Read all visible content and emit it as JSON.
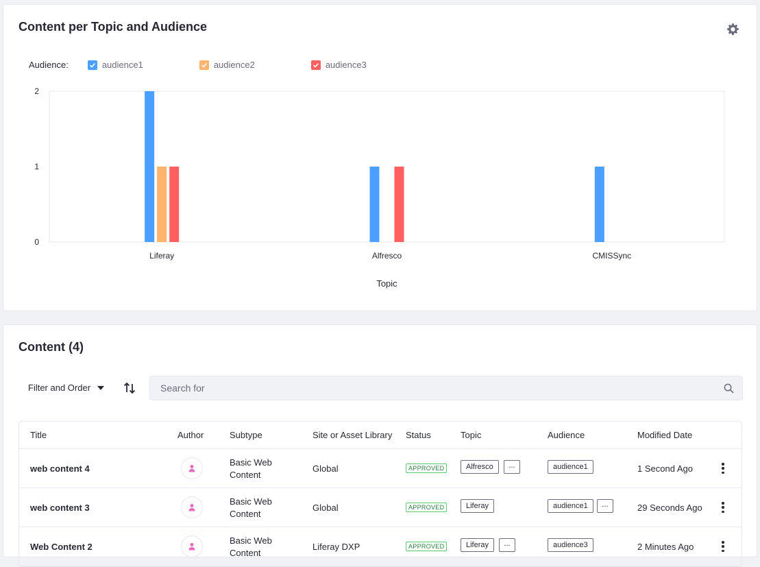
{
  "chart_card": {
    "title": "Content per Topic and Audience",
    "legend_label": "Audience:"
  },
  "chart_data": {
    "type": "bar",
    "title": "Content per Topic and Audience",
    "xlabel": "Topic",
    "ylabel": "",
    "categories": [
      "Liferay",
      "Alfresco",
      "CMISSync"
    ],
    "series": [
      {
        "name": "audience1",
        "color": "#4b9fff",
        "values": [
          2,
          1,
          1
        ]
      },
      {
        "name": "audience2",
        "color": "#ffb46e",
        "values": [
          1,
          0,
          0
        ]
      },
      {
        "name": "audience3",
        "color": "#ff5f5f",
        "values": [
          1,
          1,
          0
        ]
      }
    ],
    "ylim": [
      0,
      2
    ],
    "yticks": [
      "0",
      "1",
      "2"
    ],
    "legend": "top-left",
    "grid": false
  },
  "content_card": {
    "title": "Content (4)",
    "filter_label": "Filter and Order",
    "search_placeholder": "Search for"
  },
  "table": {
    "headers": [
      "Title",
      "Author",
      "Subtype",
      "Site or Asset Library",
      "Status",
      "Topic",
      "Audience",
      "Modified Date"
    ],
    "rows": [
      {
        "title": "web content 4",
        "subtype": "Basic Web Content",
        "site": "Global",
        "status": "APPROVED",
        "topics": [
          "Alfresco",
          "..."
        ],
        "audiences": [
          "audience1"
        ],
        "modified": "1 Second Ago"
      },
      {
        "title": "web content 3",
        "subtype": "Basic Web Content",
        "site": "Global",
        "status": "APPROVED",
        "topics": [
          "Liferay"
        ],
        "audiences": [
          "audience1",
          "..."
        ],
        "modified": "29 Seconds Ago"
      },
      {
        "title": "Web Content 2",
        "subtype": "Basic Web Content",
        "site": "Liferay DXP",
        "status": "APPROVED",
        "topics": [
          "Liferay",
          "..."
        ],
        "audiences": [
          "audience3"
        ],
        "modified": "2 Minutes Ago"
      }
    ]
  },
  "icons": {
    "gear": "gear-icon",
    "sort": "sort-icon",
    "search": "search-icon",
    "avatar": "user-icon",
    "kebab": "ellipsis-v-icon"
  },
  "colors": {
    "accent": "#0b5fff",
    "approved": "#287d3c"
  }
}
